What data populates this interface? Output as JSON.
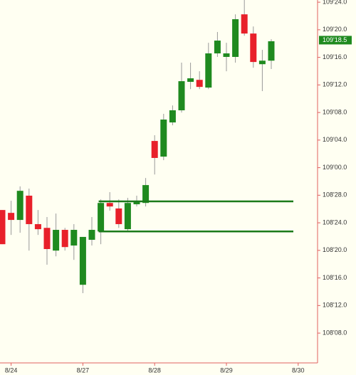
{
  "chart_data": {
    "type": "candlestick",
    "categories": [
      null,
      "8/24",
      null,
      null,
      null,
      null,
      null,
      null,
      null,
      "8/27",
      null,
      null,
      null,
      null,
      null,
      null,
      null,
      "8/28",
      null,
      null,
      null,
      null,
      null,
      null,
      null,
      "8/29",
      null,
      null,
      null,
      null,
      null,
      null,
      null,
      "8/30"
    ],
    "open": [
      108.808,
      108.795,
      108.763,
      108.873,
      108.744,
      108.727,
      108.624,
      108.718,
      108.647,
      108.469,
      108.673,
      108.711,
      108.84,
      108.815,
      108.721,
      108.834,
      108.84,
      109.121,
      109.05,
      109.205,
      109.26,
      109.389,
      109.398,
      109.363,
      109.518,
      109.502,
      109.502,
      109.695,
      109.608,
      109.469,
      109.485,
      null,
      null,
      null
    ],
    "high": [
      108.808,
      108.85,
      108.915,
      108.905,
      108.808,
      108.776,
      108.792,
      108.727,
      108.744,
      108.686,
      108.776,
      108.856,
      108.889,
      108.856,
      108.863,
      108.873,
      108.953,
      109.147,
      109.244,
      109.282,
      109.476,
      109.476,
      109.437,
      109.566,
      109.615,
      109.566,
      109.695,
      109.76,
      109.64,
      109.534,
      109.582,
      null,
      null,
      null
    ],
    "low": [
      108.653,
      108.695,
      108.705,
      108.624,
      108.695,
      108.56,
      108.598,
      108.624,
      108.582,
      108.431,
      108.647,
      108.653,
      108.805,
      108.727,
      108.708,
      108.824,
      108.824,
      108.969,
      109.034,
      109.192,
      109.25,
      109.356,
      109.356,
      109.356,
      109.502,
      109.437,
      109.476,
      109.598,
      109.453,
      109.347,
      109.447,
      null,
      null,
      null
    ],
    "close": [
      108.653,
      108.763,
      108.895,
      108.744,
      108.721,
      108.631,
      108.718,
      108.64,
      108.718,
      108.686,
      108.718,
      108.84,
      108.824,
      108.744,
      108.84,
      108.847,
      108.921,
      109.044,
      109.218,
      109.26,
      109.392,
      109.405,
      109.366,
      109.518,
      109.576,
      109.518,
      109.673,
      109.608,
      109.479,
      109.485,
      109.573,
      null,
      null,
      null
    ],
    "up_color": "#1f8a1f",
    "down_color": "#e8202a",
    "line_color": "#1a7a1a",
    "hlines": [
      108.847,
      108.711
    ],
    "last_price": {
      "value": 109.578,
      "label": "109'18.5"
    },
    "ylim": [
      108.131,
      109.76
    ],
    "yticks": [
      {
        "value": 109.75,
        "label": "109'24.0"
      },
      {
        "value": 109.625,
        "label": "109'20.0"
      },
      {
        "value": 109.5,
        "label": "109'16.0"
      },
      {
        "value": 109.375,
        "label": "109'12.0"
      },
      {
        "value": 109.25,
        "label": "109'08.0"
      },
      {
        "value": 109.125,
        "label": "109'04.0"
      },
      {
        "value": 109.0,
        "label": "109'00.0"
      },
      {
        "value": 108.875,
        "label": "108'28.0"
      },
      {
        "value": 108.75,
        "label": "108'24.0"
      },
      {
        "value": 108.625,
        "label": "108'20.0"
      },
      {
        "value": 108.5,
        "label": "108'16.0"
      },
      {
        "value": 108.375,
        "label": "108'12.0"
      },
      {
        "value": 108.25,
        "label": "108'08.0"
      }
    ],
    "grid": false
  }
}
